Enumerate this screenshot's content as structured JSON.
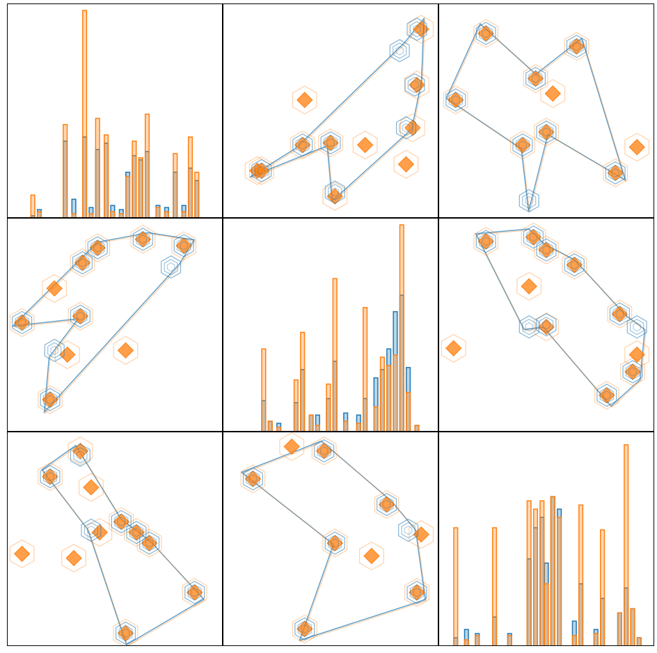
{
  "figure": {
    "colors": {
      "blue": "#1f77b4",
      "orange": "#ff7f0e",
      "frame": "#000000",
      "background": "#ffffff"
    },
    "diag_ylim": [
      0,
      1
    ],
    "offdiag_lim": [
      0,
      1
    ]
  },
  "chart_data": [
    {
      "type": "histogram",
      "panel": "row1-col1",
      "x": [
        0.12,
        0.15,
        0.27,
        0.31,
        0.36,
        0.39,
        0.42,
        0.46,
        0.49,
        0.53,
        0.56,
        0.59,
        0.62,
        0.65,
        0.7,
        0.74,
        0.78,
        0.82,
        0.85,
        0.88
      ],
      "series": [
        {
          "color": "orange",
          "values": [
            0.11,
            0.03,
            0.45,
            0.02,
            1.0,
            0.02,
            0.48,
            0.4,
            0.03,
            0.02,
            0.2,
            0.37,
            0.29,
            0.5,
            0.05,
            0.03,
            0.31,
            0.03,
            0.39,
            0.22
          ]
        },
        {
          "color": "blue",
          "values": [
            0.01,
            0.04,
            0.37,
            0.09,
            0.39,
            0.05,
            0.33,
            0.36,
            0.06,
            0.04,
            0.22,
            0.3,
            0.28,
            0.32,
            0.06,
            0.05,
            0.22,
            0.06,
            0.24,
            0.18
          ]
        }
      ]
    },
    {
      "type": "scatter",
      "panel": "row1-col2",
      "series": [
        {
          "color": "orange",
          "x": [
            0.18,
            0.38,
            0.5,
            0.66,
            0.92,
            0.85,
            0.9,
            0.88,
            0.52,
            0.37,
            0.16
          ],
          "y": [
            0.22,
            0.55,
            0.35,
            0.34,
            0.88,
            0.25,
            0.62,
            0.42,
            0.1,
            0.34,
            0.22
          ]
        },
        {
          "color": "blue",
          "x": [
            0.18,
            0.5,
            0.82,
            0.9,
            0.89,
            0.85,
            0.52,
            0.37
          ],
          "y": [
            0.22,
            0.35,
            0.78,
            0.88,
            0.62,
            0.42,
            0.12,
            0.34
          ]
        }
      ]
    },
    {
      "type": "scatter",
      "panel": "row1-col3",
      "series": [
        {
          "color": "orange",
          "x": [
            0.22,
            0.64,
            0.45,
            0.53,
            0.5,
            0.39,
            0.92,
            0.82,
            0.08
          ],
          "y": [
            0.86,
            0.8,
            0.65,
            0.58,
            0.4,
            0.34,
            0.33,
            0.21,
            0.55
          ]
        },
        {
          "color": "blue",
          "x": [
            0.22,
            0.64,
            0.45,
            0.5,
            0.39,
            0.82,
            0.42,
            0.08
          ],
          "y": [
            0.86,
            0.8,
            0.65,
            0.4,
            0.34,
            0.21,
            0.08,
            0.55
          ]
        }
      ]
    },
    {
      "type": "scatter",
      "panel": "row2-col1",
      "series": [
        {
          "color": "orange",
          "x": [
            0.42,
            0.63,
            0.82,
            0.07,
            0.34,
            0.55,
            0.28,
            0.22,
            0.35,
            0.2
          ],
          "y": [
            0.86,
            0.9,
            0.87,
            0.51,
            0.54,
            0.38,
            0.36,
            0.67,
            0.79,
            0.15
          ]
        },
        {
          "color": "blue",
          "x": [
            0.42,
            0.63,
            0.82,
            0.76,
            0.07,
            0.34,
            0.35,
            0.2,
            0.22
          ],
          "y": [
            0.86,
            0.9,
            0.87,
            0.77,
            0.51,
            0.54,
            0.79,
            0.15,
            0.38
          ]
        }
      ]
    },
    {
      "type": "histogram",
      "panel": "row2-col2",
      "x": [
        0.19,
        0.22,
        0.26,
        0.34,
        0.37,
        0.41,
        0.44,
        0.49,
        0.52,
        0.57,
        0.63,
        0.66,
        0.71,
        0.74,
        0.77,
        0.8,
        0.83,
        0.86,
        0.9
      ],
      "series": [
        {
          "color": "orange",
          "values": [
            0.4,
            0.05,
            0.02,
            0.25,
            0.48,
            0.08,
            0.03,
            0.23,
            0.74,
            0.05,
            0.04,
            0.6,
            0.12,
            0.36,
            0.32,
            0.37,
            1.0,
            0.19,
            0.03
          ]
        },
        {
          "color": "blue",
          "values": [
            0.15,
            0.05,
            0.04,
            0.14,
            0.3,
            0.08,
            0.08,
            0.16,
            0.34,
            0.09,
            0.08,
            0.16,
            0.26,
            0.3,
            0.4,
            0.58,
            0.66,
            0.31,
            0.03
          ]
        }
      ]
    },
    {
      "type": "scatter",
      "panel": "row2-col3",
      "series": [
        {
          "color": "orange",
          "x": [
            0.22,
            0.44,
            0.5,
            0.63,
            0.84,
            0.42,
            0.5,
            0.92,
            0.07,
            0.9,
            0.78
          ],
          "y": [
            0.89,
            0.91,
            0.85,
            0.78,
            0.55,
            0.68,
            0.49,
            0.36,
            0.39,
            0.28,
            0.17
          ]
        },
        {
          "color": "blue",
          "x": [
            0.22,
            0.44,
            0.5,
            0.63,
            0.84,
            0.42,
            0.5,
            0.92,
            0.9,
            0.78
          ],
          "y": [
            0.89,
            0.91,
            0.85,
            0.78,
            0.55,
            0.49,
            0.5,
            0.49,
            0.28,
            0.17
          ]
        }
      ]
    },
    {
      "type": "scatter",
      "panel": "row3-col1",
      "series": [
        {
          "color": "orange",
          "x": [
            0.34,
            0.2,
            0.39,
            0.53,
            0.6,
            0.66,
            0.07,
            0.31,
            0.43,
            0.87,
            0.55
          ],
          "y": [
            0.91,
            0.79,
            0.74,
            0.58,
            0.53,
            0.48,
            0.43,
            0.41,
            0.53,
            0.25,
            0.06
          ]
        },
        {
          "color": "blue",
          "x": [
            0.34,
            0.2,
            0.39,
            0.53,
            0.6,
            0.66,
            0.87,
            0.55
          ],
          "y": [
            0.89,
            0.79,
            0.54,
            0.58,
            0.53,
            0.48,
            0.25,
            0.06
          ]
        }
      ]
    },
    {
      "type": "scatter",
      "panel": "row3-col2",
      "series": [
        {
          "color": "orange",
          "x": [
            0.32,
            0.47,
            0.14,
            0.76,
            0.92,
            0.52,
            0.69,
            0.9,
            0.38
          ],
          "y": [
            0.93,
            0.91,
            0.78,
            0.66,
            0.52,
            0.48,
            0.42,
            0.25,
            0.08
          ]
        },
        {
          "color": "blue",
          "x": [
            0.47,
            0.14,
            0.76,
            0.86,
            0.52,
            0.9,
            0.38
          ],
          "y": [
            0.91,
            0.78,
            0.66,
            0.54,
            0.48,
            0.25,
            0.08
          ]
        }
      ]
    },
    {
      "type": "histogram",
      "panel": "row3-col3",
      "x": [
        0.08,
        0.13,
        0.18,
        0.26,
        0.33,
        0.42,
        0.45,
        0.48,
        0.5,
        0.53,
        0.56,
        0.63,
        0.66,
        0.73,
        0.76,
        0.84,
        0.87,
        0.9,
        0.93
      ],
      "series": [
        {
          "color": "orange",
          "values": [
            0.57,
            0.03,
            0.05,
            0.57,
            0.05,
            0.7,
            0.66,
            0.7,
            0.3,
            0.72,
            0.62,
            0.05,
            0.68,
            0.06,
            0.56,
            0.16,
            0.97,
            0.18,
            0.04
          ]
        },
        {
          "color": "blue",
          "values": [
            0.04,
            0.08,
            0.06,
            0.14,
            0.06,
            0.42,
            0.57,
            0.62,
            0.4,
            0.72,
            0.66,
            0.12,
            0.3,
            0.08,
            0.23,
            0.16,
            0.28,
            0.18,
            0.04
          ]
        }
      ]
    }
  ]
}
